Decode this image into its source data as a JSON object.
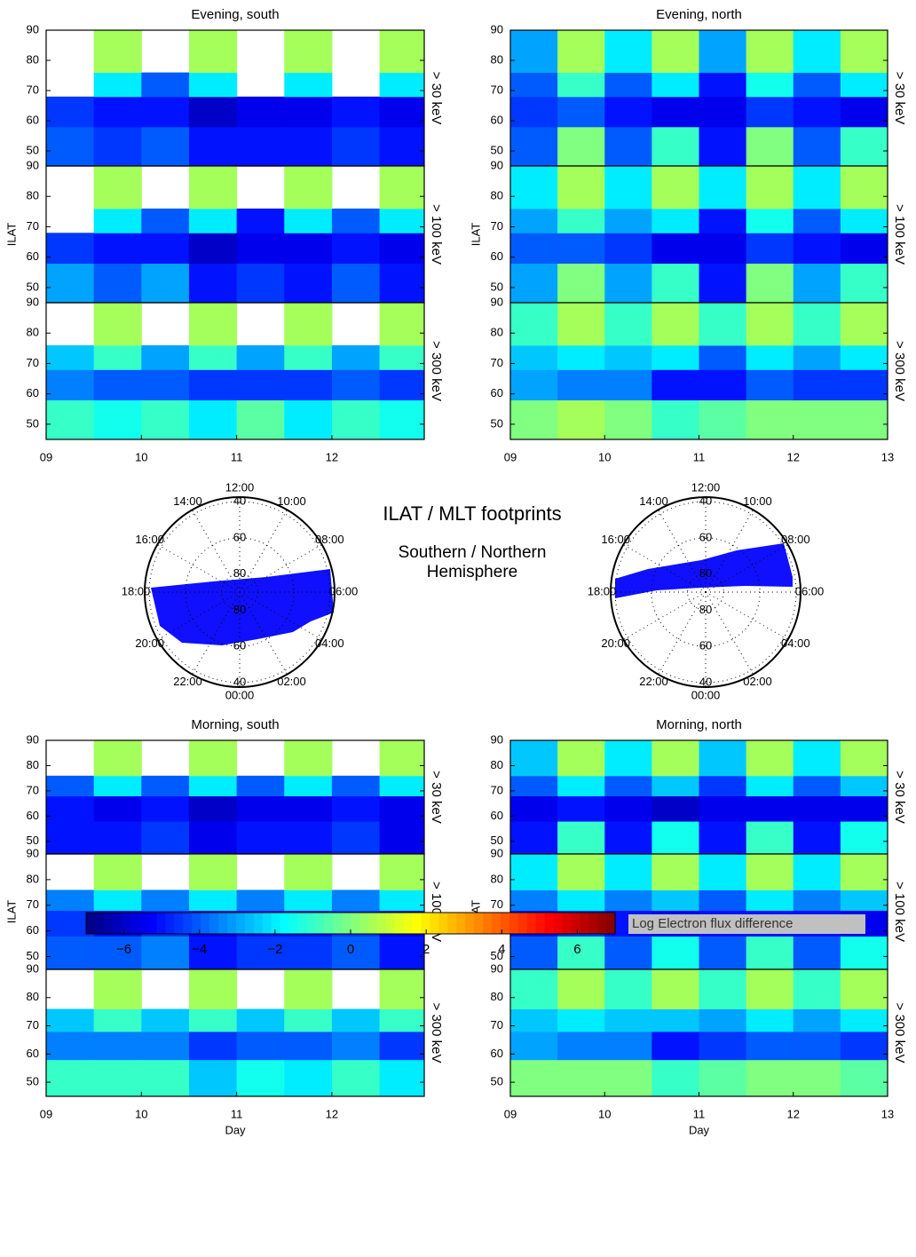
{
  "annotations": [
    "ILAT / MLT footprints",
    "Southern / Northern",
    "Hemisphere"
  ],
  "chart_data": [
    {
      "type": "heatmap",
      "title": "Evening, south",
      "energy": "> 30 keV",
      "xlim": [
        9,
        12.97
      ],
      "ylim": [
        45,
        90
      ],
      "yticks": [
        50,
        60,
        70,
        80,
        90
      ],
      "x_edges": [
        9,
        9.5,
        10,
        10.5,
        11,
        11.5,
        12,
        12.5,
        12.97
      ],
      "y_edges": [
        45,
        58,
        68,
        76,
        90
      ],
      "z": [
        [
          -4,
          -4.5,
          -4,
          -5,
          -5,
          -5,
          -4.5,
          -5
        ],
        [
          -4.5,
          -5,
          -5,
          -6,
          -5.5,
          -5.5,
          -5,
          -5.5
        ],
        [
          null,
          -2,
          -4,
          -2,
          null,
          -2,
          null,
          -2
        ],
        [
          null,
          0.5,
          null,
          0.5,
          null,
          0.5,
          null,
          0.5
        ]
      ]
    },
    {
      "type": "heatmap",
      "energy": "> 100 keV",
      "ylabel": "ILAT",
      "xlim": [
        9,
        12.97
      ],
      "ylim": [
        45,
        90
      ],
      "yticks": [
        50,
        60,
        70,
        80,
        90
      ],
      "x_edges": [
        9,
        9.5,
        10,
        10.5,
        11,
        11.5,
        12,
        12.5,
        12.97
      ],
      "y_edges": [
        45,
        58,
        68,
        76,
        90
      ],
      "z": [
        [
          -3,
          -4,
          -3,
          -5,
          -4.5,
          -5,
          -4,
          -5
        ],
        [
          -4.5,
          -5,
          -5,
          -6,
          -5.5,
          -5.5,
          -5,
          -5.5
        ],
        [
          null,
          -2,
          -4,
          -2,
          -5,
          -2,
          -4,
          -2
        ],
        [
          null,
          0.5,
          null,
          0.5,
          null,
          0.5,
          null,
          0.5
        ]
      ]
    },
    {
      "type": "heatmap",
      "energy": "> 300 keV",
      "xlim": [
        9,
        12.97
      ],
      "ylim": [
        45,
        90
      ],
      "yticks": [
        50,
        60,
        70,
        80,
        90
      ],
      "xticks": [
        {
          "value": 9,
          "label": "09"
        },
        10,
        11,
        12
      ],
      "x_edges": [
        9,
        9.5,
        10,
        10.5,
        11,
        11.5,
        12,
        12.5,
        12.97
      ],
      "y_edges": [
        45,
        58,
        68,
        76,
        90
      ],
      "z": [
        [
          -1,
          -1.5,
          -1,
          -2,
          -0.5,
          -2,
          -1,
          -1.5
        ],
        [
          -3.5,
          -4,
          -4,
          -4.5,
          -4.5,
          -4.5,
          -4,
          -4.5
        ],
        [
          -2.5,
          -1,
          -3,
          -1,
          -3,
          -1,
          -3,
          -1
        ],
        [
          null,
          0.5,
          null,
          0.5,
          null,
          0.5,
          null,
          0.5
        ]
      ]
    },
    {
      "type": "heatmap",
      "title": "Evening, north",
      "energy": "> 30 keV",
      "xlim": [
        9,
        13
      ],
      "ylim": [
        45,
        90
      ],
      "yticks": [
        50,
        60,
        70,
        80,
        90
      ],
      "x_edges": [
        9,
        9.5,
        10,
        10.5,
        11,
        11.5,
        12,
        12.5,
        13
      ],
      "y_edges": [
        45,
        58,
        68,
        76,
        90
      ],
      "z": [
        [
          -4,
          0,
          -4,
          -1,
          -5,
          0,
          -4,
          -1
        ],
        [
          -4.5,
          -4,
          -5,
          -5.5,
          -5.5,
          -4.5,
          -5,
          -5.5
        ],
        [
          -4,
          -1,
          -4,
          -2,
          -5,
          -1.5,
          -4,
          -2
        ],
        [
          -3,
          0.5,
          -2,
          0.5,
          -3,
          0.5,
          -2,
          0.5
        ]
      ]
    },
    {
      "type": "heatmap",
      "energy": "> 100 keV",
      "ylabel": "ILAT",
      "xlim": [
        9,
        13
      ],
      "ylim": [
        45,
        90
      ],
      "yticks": [
        50,
        60,
        70,
        80,
        90
      ],
      "x_edges": [
        9,
        9.5,
        10,
        10.5,
        11,
        11.5,
        12,
        12.5,
        13
      ],
      "y_edges": [
        45,
        58,
        68,
        76,
        90
      ],
      "z": [
        [
          -3,
          0,
          -3,
          -1,
          -5,
          0,
          -3,
          -1
        ],
        [
          -4,
          -4,
          -4.5,
          -5.5,
          -5.5,
          -4.5,
          -5,
          -5.5
        ],
        [
          -3,
          -1,
          -3,
          -2,
          -5,
          -1.5,
          -4,
          -2
        ],
        [
          -2,
          0.5,
          -2,
          0.5,
          -2,
          0.5,
          -2,
          0.5
        ]
      ]
    },
    {
      "type": "heatmap",
      "energy": "> 300 keV",
      "xlim": [
        9,
        13
      ],
      "ylim": [
        45,
        90
      ],
      "yticks": [
        50,
        60,
        70,
        80,
        90
      ],
      "xticks": [
        {
          "value": 9,
          "label": "09"
        },
        10,
        11,
        12,
        13
      ],
      "x_edges": [
        9,
        9.5,
        10,
        10.5,
        11,
        11.5,
        12,
        12.5,
        13
      ],
      "y_edges": [
        45,
        58,
        68,
        76,
        90
      ],
      "z": [
        [
          0,
          0.5,
          0,
          -1,
          -0.5,
          0,
          0,
          0
        ],
        [
          -3,
          -3.5,
          -3.5,
          -5,
          -5,
          -4,
          -4.5,
          -4.5
        ],
        [
          -2.5,
          -2,
          -2.5,
          -2,
          -4,
          -2,
          -3,
          -2
        ],
        [
          -1,
          0.5,
          -1,
          0.5,
          -1,
          0.5,
          -1,
          0.5
        ]
      ]
    },
    {
      "type": "heatmap",
      "title": "Morning, south",
      "energy": "> 30 keV",
      "xlim": [
        9,
        12.97
      ],
      "ylim": [
        45,
        90
      ],
      "yticks": [
        50,
        60,
        70,
        80,
        90
      ],
      "x_edges": [
        9,
        9.5,
        10,
        10.5,
        11,
        11.5,
        12,
        12.5,
        12.97
      ],
      "y_edges": [
        45,
        58,
        68,
        76,
        90
      ],
      "z": [
        [
          -5,
          -5,
          -4.5,
          -5.5,
          -5,
          -5,
          -4.5,
          -5.5
        ],
        [
          -5,
          -5.5,
          -5,
          -6,
          -5.5,
          -5.5,
          -5,
          -5.5
        ],
        [
          -4,
          -2,
          -4,
          -2,
          -4,
          -2,
          -4,
          -2
        ],
        [
          null,
          0.5,
          null,
          0.5,
          null,
          0.5,
          null,
          0.5
        ]
      ]
    },
    {
      "type": "heatmap",
      "energy": "> 100 keV",
      "ylabel": "ILAT",
      "xlim": [
        9,
        12.97
      ],
      "ylim": [
        45,
        90
      ],
      "yticks": [
        50,
        60,
        70,
        80,
        90
      ],
      "x_edges": [
        9,
        9.5,
        10,
        10.5,
        11,
        11.5,
        12,
        12.5,
        12.97
      ],
      "y_edges": [
        45,
        58,
        68,
        76,
        90
      ],
      "z": [
        [
          -4,
          -4,
          -3.5,
          -5,
          -4.5,
          -4.5,
          -4,
          -5
        ],
        [
          -4.5,
          -5,
          -4.5,
          -5.5,
          -5,
          -5,
          -4.5,
          -5.5
        ],
        [
          -3.5,
          -2,
          -3.5,
          -2,
          -3.5,
          -2,
          -3.5,
          -2
        ],
        [
          null,
          0.5,
          null,
          0.5,
          null,
          0.5,
          null,
          0.5
        ]
      ]
    },
    {
      "type": "heatmap",
      "energy": "> 300 keV",
      "xlabel": "Day",
      "xlim": [
        9,
        12.97
      ],
      "ylim": [
        45,
        90
      ],
      "yticks": [
        50,
        60,
        70,
        80,
        90
      ],
      "xticks": [
        {
          "value": 9,
          "label": "09"
        },
        10,
        11,
        12
      ],
      "x_edges": [
        9,
        9.5,
        10,
        10.5,
        11,
        11.5,
        12,
        12.5,
        12.97
      ],
      "y_edges": [
        45,
        58,
        68,
        76,
        90
      ],
      "z": [
        [
          -1,
          -1,
          -1,
          -2.5,
          -1.5,
          -2,
          -1,
          -2
        ],
        [
          -3.5,
          -3.5,
          -3.5,
          -4.5,
          -4,
          -4,
          -3.5,
          -4.5
        ],
        [
          -2.5,
          -1,
          -2.5,
          -1,
          -2.5,
          -1,
          -2.5,
          -1
        ],
        [
          null,
          0.5,
          null,
          0.5,
          null,
          0.5,
          null,
          0.5
        ]
      ]
    },
    {
      "type": "heatmap",
      "title": "Morning, north",
      "energy": "> 30 keV",
      "xlim": [
        9,
        13
      ],
      "ylim": [
        45,
        90
      ],
      "yticks": [
        50,
        60,
        70,
        80,
        90
      ],
      "x_edges": [
        9,
        9.5,
        10,
        10.5,
        11,
        11.5,
        12,
        12.5,
        13
      ],
      "y_edges": [
        45,
        58,
        68,
        76,
        90
      ],
      "z": [
        [
          -5,
          -1,
          -5,
          -1.5,
          -5,
          -1,
          -5,
          -1.5
        ],
        [
          -5.5,
          -5,
          -5.5,
          -6,
          -5.5,
          -5.5,
          -5.5,
          -5.5
        ],
        [
          -4,
          -2,
          -4,
          -2.5,
          -4.5,
          -2,
          -4,
          -2.5
        ],
        [
          -2.5,
          0.5,
          -2,
          0.5,
          -2.5,
          0.5,
          -2,
          0.5
        ]
      ]
    },
    {
      "type": "heatmap",
      "energy": "> 100 keV",
      "ylabel": "ILAT",
      "xlim": [
        9,
        13
      ],
      "ylim": [
        45,
        90
      ],
      "yticks": [
        50,
        60,
        70,
        80,
        90
      ],
      "x_edges": [
        9,
        9.5,
        10,
        10.5,
        11,
        11.5,
        12,
        12.5,
        13
      ],
      "y_edges": [
        45,
        58,
        68,
        76,
        90
      ],
      "z": [
        [
          -4,
          -1,
          -4,
          -1.5,
          -4,
          -1,
          -4,
          -1.5
        ],
        [
          -5,
          -4.5,
          -5,
          -5.5,
          -5,
          -5,
          -5,
          -5.5
        ],
        [
          -3.5,
          -2,
          -3.5,
          -2.5,
          -4,
          -2,
          -3.5,
          -2.5
        ],
        [
          -2,
          0.5,
          -2,
          0.5,
          -2,
          0.5,
          -2,
          0.5
        ]
      ]
    },
    {
      "type": "heatmap",
      "energy": "> 300 keV",
      "xlabel": "Day",
      "xlim": [
        9,
        13
      ],
      "ylim": [
        45,
        90
      ],
      "yticks": [
        50,
        60,
        70,
        80,
        90
      ],
      "xticks": [
        {
          "value": 9,
          "label": "09"
        },
        10,
        11,
        12,
        13
      ],
      "x_edges": [
        9,
        9.5,
        10,
        10.5,
        11,
        11.5,
        12,
        12.5,
        13
      ],
      "y_edges": [
        45,
        58,
        68,
        76,
        90
      ],
      "z": [
        [
          0,
          0,
          0,
          -1,
          -0.5,
          0,
          0,
          -0.5
        ],
        [
          -3,
          -3.5,
          -3.5,
          -5,
          -4.5,
          -4,
          -4,
          -4.5
        ],
        [
          -2.5,
          -2,
          -2.5,
          -2.5,
          -3,
          -2,
          -3,
          -2
        ],
        [
          -1,
          0.5,
          -1,
          0.5,
          -1,
          0.5,
          -1,
          0.5
        ]
      ]
    },
    {
      "type": "polar",
      "rlim": [
        90,
        37.5
      ],
      "rticks": [
        40,
        60,
        80
      ],
      "mlt_ticks": [
        {
          "value": 12,
          "label": "12:00"
        },
        {
          "value": 10,
          "label": "10:00"
        },
        {
          "value": 8,
          "label": "08:00"
        },
        {
          "value": 6,
          "label": "06:00"
        },
        {
          "value": 4,
          "label": "04:00"
        },
        {
          "value": 2,
          "label": "02:00"
        },
        {
          "value": 0,
          "label": "00:00"
        },
        {
          "value": 22,
          "label": "22:00"
        },
        {
          "value": 20,
          "label": "20:00"
        },
        {
          "value": 18,
          "label": "18:00"
        },
        {
          "value": 16,
          "label": "16:00"
        },
        {
          "value": 14,
          "label": "14:00"
        }
      ]
    },
    {
      "type": "polar",
      "rlim": [
        90,
        37.5
      ],
      "rticks": [
        40,
        60,
        80
      ],
      "mlt_ticks": [
        {
          "value": 12,
          "label": "12:00"
        },
        {
          "value": 10,
          "label": "10:00"
        },
        {
          "value": 8,
          "label": "08:00"
        },
        {
          "value": 6,
          "label": "06:00"
        },
        {
          "value": 4,
          "label": "04:00"
        },
        {
          "value": 2,
          "label": "02:00"
        },
        {
          "value": 0,
          "label": "00:00"
        },
        {
          "value": 22,
          "label": "22:00"
        },
        {
          "value": 20,
          "label": "20:00"
        },
        {
          "value": 18,
          "label": "18:00"
        },
        {
          "value": 16,
          "label": "16:00"
        },
        {
          "value": 14,
          "label": "14:00"
        }
      ]
    },
    {
      "type": "colorbar",
      "label": "Log Electron flux difference",
      "clim": [
        -7,
        7
      ],
      "ticks": [
        {
          "value": -6,
          "label": "−6"
        },
        {
          "value": -4,
          "label": "−4"
        },
        {
          "value": -2,
          "label": "−2"
        },
        0,
        2,
        4,
        6
      ]
    }
  ]
}
